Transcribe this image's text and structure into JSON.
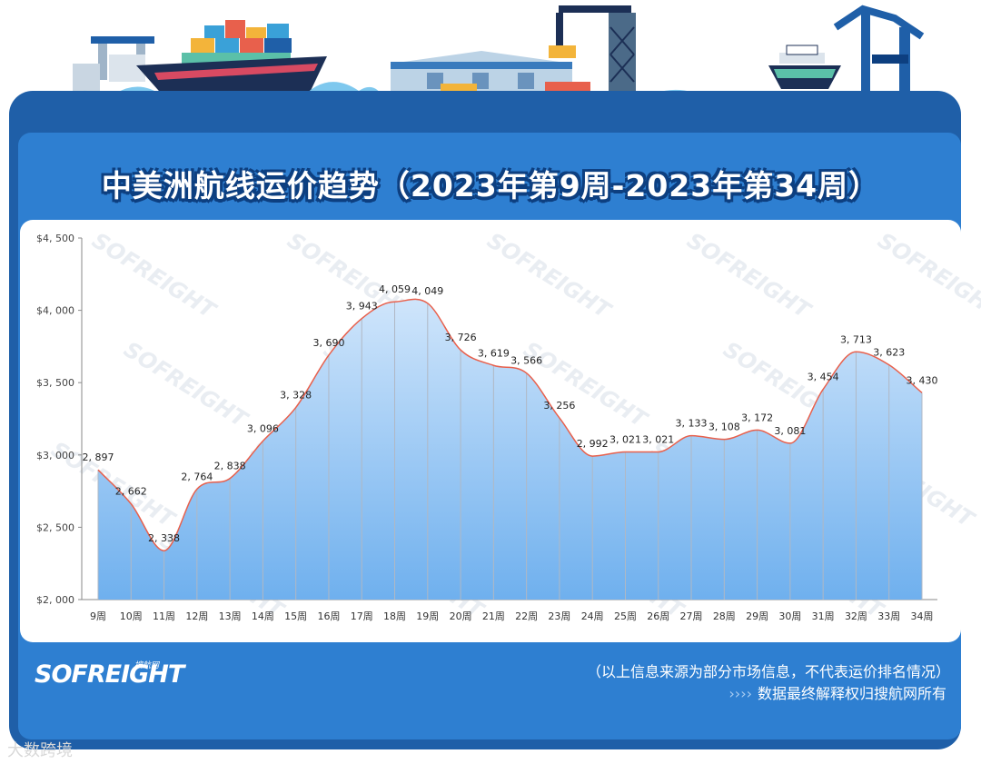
{
  "header": {
    "title": "中美洲航线运价趋势（2023年第9周-2023年第34周）"
  },
  "chart_data": {
    "type": "area",
    "title": "中美洲航线运价趋势（2023年第9周-2023年第34周）",
    "categories": [
      "9周",
      "10周",
      "11周",
      "12周",
      "13周",
      "14周",
      "15周",
      "16周",
      "17周",
      "18周",
      "19周",
      "20周",
      "21周",
      "22周",
      "23周",
      "24周",
      "25周",
      "26周",
      "27周",
      "28周",
      "29周",
      "30周",
      "31周",
      "32周",
      "33周",
      "34周"
    ],
    "values": [
      2897,
      2662,
      2338,
      2764,
      2838,
      3096,
      3328,
      3690,
      3943,
      4059,
      4049,
      3726,
      3619,
      3566,
      3256,
      2992,
      3021,
      3021,
      3133,
      3108,
      3172,
      3081,
      3454,
      3713,
      3623,
      3430
    ],
    "value_labels": [
      "2, 897",
      "2, 662",
      "2, 338",
      "2, 764",
      "2, 838",
      "3, 096",
      "3, 328",
      "3, 690",
      "3, 943",
      "4, 059",
      "4, 049",
      "3, 726",
      "3, 619",
      "3, 566",
      "3, 256",
      "2, 992",
      "3, 021",
      "3, 021",
      "3, 133",
      "3, 108",
      "3, 172",
      "3, 081",
      "3, 454",
      "3, 713",
      "3, 623",
      "3, 430"
    ],
    "ylim": [
      2000,
      4500
    ],
    "yticks": [
      2000,
      2500,
      3000,
      3500,
      4000,
      4500
    ],
    "ytick_labels": [
      "$2, 000",
      "$2, 500",
      "$3, 000",
      "$3, 500",
      "$4, 000",
      "$4, 500"
    ],
    "xlabel": "",
    "ylabel": "",
    "grid": "vertical drop lines",
    "legend": "none",
    "colors": {
      "line": "#e8604c",
      "fill_top": "#cfe5fb",
      "fill_bottom": "#6fb0ee",
      "drop": "#b0b8c4",
      "axis": "#8a8a8a"
    }
  },
  "watermark": "SOFREIGHT",
  "footer": {
    "brand": "SOFREIGHT",
    "brand_sub": "搜航网",
    "note1": "（以上信息来源为部分市场信息，不代表运价排名情况）",
    "note2_prefix": "››››",
    "note2": "数据最终解释权归搜航网所有"
  },
  "credit": "大数跨境",
  "colors": {
    "frame": "#1f5fa8",
    "inner": "#2e7fd1",
    "title_outline": "#0d3f80",
    "sea": "#7ec8ee"
  }
}
